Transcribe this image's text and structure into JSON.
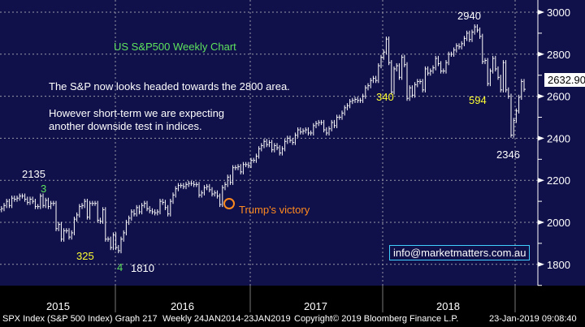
{
  "chart_data": {
    "type": "bar",
    "subtype": "weekly price bars",
    "title": "US S&P500 Weekly Chart",
    "series_name": "SPX Index (S&P 500 Index)",
    "ylim": [
      1750,
      3070
    ],
    "yticks": [
      1800,
      2000,
      2200,
      2400,
      2600,
      2800,
      3000
    ],
    "xticks": [
      "2015",
      "2016",
      "2017",
      "2018"
    ],
    "last_value_label": "2632.90",
    "weekly_close": [
      2060,
      2070,
      2075,
      2070,
      2000,
      2070,
      2090,
      2060,
      2045,
      2020,
      2050,
      1995,
      2055,
      2095,
      2100,
      2110,
      2105,
      2070,
      2110,
      2060,
      2065,
      2080,
      2100,
      2080,
      2115,
      2110,
      2115,
      2125,
      2125,
      2110,
      2095,
      2110,
      2100,
      2075,
      2075,
      2125,
      2080,
      2105,
      2075,
      2090,
      2090,
      1970,
      1990,
      1920,
      1960,
      1960,
      1930,
      1950,
      2015,
      2035,
      2075,
      2080,
      2100,
      2025,
      2090,
      2090,
      2090,
      2010,
      2005,
      2060,
      1920,
      1920,
      1880,
      1940,
      1880,
      1865,
      1920,
      1950,
      2000,
      2020,
      2050,
      2040,
      2070,
      2050,
      2080,
      2090,
      2065,
      2055,
      2050,
      2045,
      2050,
      2100,
      2095,
      2070,
      2040,
      2100,
      2130,
      2160,
      2175,
      2175,
      2170,
      2180,
      2185,
      2185,
      2180,
      2180,
      2130,
      2140,
      2165,
      2170,
      2155,
      2135,
      2140,
      2125,
      2085,
      2165,
      2180,
      2215,
      2190,
      2260,
      2260,
      2265,
      2240,
      2275,
      2275,
      2270,
      2295,
      2295,
      2315,
      2350,
      2365,
      2385,
      2370,
      2380,
      2345,
      2365,
      2355,
      2330,
      2350,
      2385,
      2400,
      2390,
      2380,
      2415,
      2440,
      2430,
      2435,
      2440,
      2425,
      2425,
      2460,
      2470,
      2475,
      2475,
      2440,
      2425,
      2445,
      2475,
      2460,
      2500,
      2500,
      2520,
      2545,
      2555,
      2575,
      2580,
      2585,
      2580,
      2580,
      2600,
      2640,
      2650,
      2675,
      2685,
      2675,
      2745,
      2785,
      2810,
      2872,
      2760,
      2620,
      2730,
      2745,
      2690,
      2785,
      2750,
      2590,
      2640,
      2605,
      2655,
      2670,
      2670,
      2630,
      2730,
      2710,
      2720,
      2735,
      2780,
      2755,
      2720,
      2720,
      2760,
      2800,
      2800,
      2820,
      2840,
      2835,
      2850,
      2875,
      2900,
      2870,
      2905,
      2930,
      2915,
      2885,
      2765,
      2770,
      2660,
      2720,
      2780,
      2730,
      2690,
      2630,
      2760,
      2630,
      2600,
      2415,
      2485,
      2530,
      2595,
      2670,
      2633
    ],
    "annotations": {
      "heading": "US S&P500 Weekly Chart",
      "line1": "The S&P now looks headed towards the 2800 area.",
      "line2a": "However short-term we are expecting",
      "line2b": "another downside test in indices.",
      "l2135": "2135",
      "w3": "3",
      "l325": "325",
      "w4": "4",
      "l1810": "1810",
      "trump": "Trump's victory",
      "l340": "340",
      "l2940": "2940",
      "l594": "594",
      "l2346": "2346",
      "email": "info@marketmatters.com.au"
    }
  },
  "footer": {
    "index": "SPX Index (S&P 500 Index) Graph 217",
    "range": "Weekly 24JAN2014-23JAN2019",
    "copyright": "Copyright© 2019 Bloomberg Finance L.P.",
    "timestamp": "23-Jan-2019 09:08:40"
  },
  "colors": {
    "bg": "#10104a",
    "green": "#5ee35e",
    "yellow": "#ffff33",
    "orange": "#ff8a1f"
  }
}
